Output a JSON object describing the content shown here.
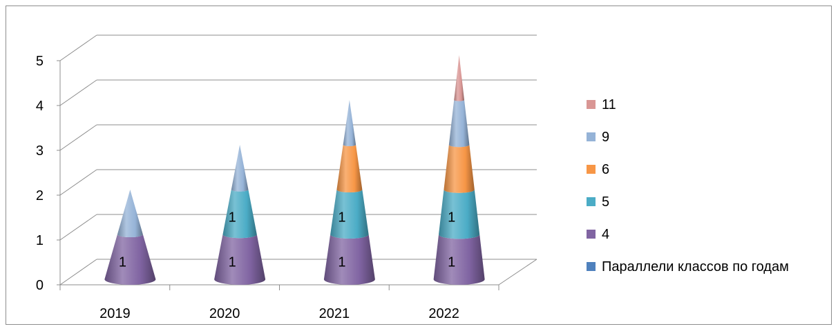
{
  "chart_data": {
    "type": "bar",
    "style": "3d-stacked-cone",
    "categories": [
      "2019",
      "2020",
      "2021",
      "2022"
    ],
    "series": [
      {
        "name": "Параллели классов по годам",
        "values": [
          0,
          0,
          0,
          0
        ],
        "color": "#4f81bd"
      },
      {
        "name": "4",
        "values": [
          1,
          1,
          1,
          1
        ],
        "color": "#8064a2"
      },
      {
        "name": "5",
        "values": [
          0,
          1,
          1,
          1
        ],
        "color": "#4bacc6"
      },
      {
        "name": "6",
        "values": [
          0,
          0,
          1,
          1
        ],
        "color": "#f79646"
      },
      {
        "name": "9",
        "values": [
          1,
          1,
          1,
          1
        ],
        "color": "#95b3d7"
      },
      {
        "name": "11",
        "values": [
          0,
          0,
          0,
          1
        ],
        "color": "#d99694"
      }
    ],
    "data_labels": [
      {
        "category": "2019",
        "series": "4",
        "text": "1"
      },
      {
        "category": "2020",
        "series": "4",
        "text": "1"
      },
      {
        "category": "2020",
        "series": "5",
        "text": "1"
      },
      {
        "category": "2021",
        "series": "4",
        "text": "1"
      },
      {
        "category": "2021",
        "series": "5",
        "text": "1"
      },
      {
        "category": "2022",
        "series": "4",
        "text": "1"
      },
      {
        "category": "2022",
        "series": "5",
        "text": "1"
      }
    ],
    "yticks": [
      "0",
      "1",
      "2",
      "3",
      "4",
      "5"
    ],
    "ylim": [
      0,
      5
    ],
    "grid": true,
    "legend": "right",
    "legend_order": [
      "11",
      "9",
      "6",
      "5",
      "4",
      "Параллели классов по годам"
    ]
  }
}
